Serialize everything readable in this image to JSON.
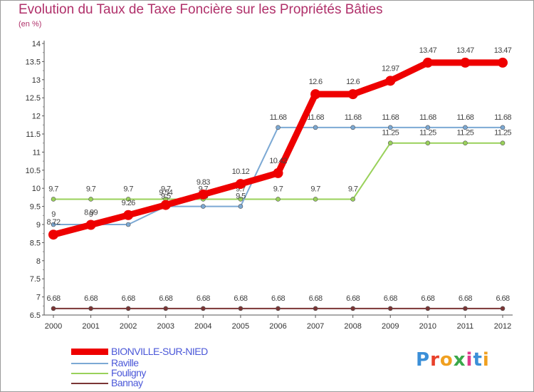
{
  "title": "Evolution du Taux de Taxe Foncière sur les Propriétés Bâties",
  "subtitle": "(en %)",
  "logo": {
    "text": "Proxiti",
    "colors": [
      "#3b8fd8",
      "#e8402a",
      "#f0a020",
      "#3aa84a",
      "#e03a8a",
      "#3b8fd8",
      "#f0a020"
    ]
  },
  "chart_data": {
    "type": "line",
    "categories": [
      "2000",
      "2001",
      "2002",
      "2003",
      "2004",
      "2005",
      "2006",
      "2007",
      "2008",
      "2009",
      "2010",
      "2011",
      "2012"
    ],
    "ylim": [
      6.5,
      14
    ],
    "yticks": [
      "6.5",
      "7",
      "7.5",
      "8",
      "8.5",
      "9",
      "9.5",
      "10",
      "10.5",
      "11",
      "11.5",
      "12",
      "12.5",
      "13",
      "13.5",
      "14"
    ],
    "grid": false,
    "legend_position": "bottom-left",
    "series": [
      {
        "name": "Bannay",
        "color": "#7b3535",
        "width": 2,
        "values": [
          6.68,
          6.68,
          6.68,
          6.68,
          6.68,
          6.68,
          6.68,
          6.68,
          6.68,
          6.68,
          6.68,
          6.68,
          6.68
        ],
        "labels": [
          "6.68",
          "6.68",
          "6.68",
          "6.68",
          "6.68",
          "6.68",
          "6.68",
          "6.68",
          "6.68",
          "6.68",
          "6.68",
          "6.68",
          "6.68"
        ]
      },
      {
        "name": "Fouligny",
        "color": "#99d15a",
        "width": 2,
        "values": [
          9.7,
          9.7,
          9.7,
          9.7,
          9.7,
          9.7,
          9.7,
          9.7,
          9.7,
          11.25,
          11.25,
          11.25,
          11.25
        ],
        "labels": [
          "9.7",
          "9.7",
          "9.7",
          "9.7",
          "9.7",
          "9.7",
          "9.7",
          "9.7",
          "9.7",
          "11.25",
          "11.25",
          "11.25",
          "11.25"
        ]
      },
      {
        "name": "Raville",
        "color": "#7ca9d4",
        "width": 2,
        "values": [
          9,
          9,
          9,
          9.5,
          9.5,
          9.5,
          11.68,
          11.68,
          11.68,
          11.68,
          11.68,
          11.68,
          11.68
        ],
        "labels": [
          "9",
          "9",
          "9",
          "9.5",
          "9.5",
          "9.5",
          "11.68",
          "11.68",
          "11.68",
          "11.68",
          "11.68",
          "11.68",
          "11.68"
        ]
      },
      {
        "name": "BIONVILLE-SUR-NIED",
        "color": "#ee0000",
        "width": 9,
        "values": [
          8.72,
          8.99,
          9.26,
          9.54,
          9.83,
          10.12,
          10.42,
          12.6,
          12.6,
          12.97,
          13.47,
          13.47,
          13.47
        ],
        "labels": [
          "8.72",
          "8.99",
          "9.26",
          "9.54",
          "9.83",
          "10.12",
          "10.42",
          "12.6",
          "12.6",
          "12.97",
          "13.47",
          "13.47",
          "13.47"
        ]
      }
    ],
    "legend_order": [
      "BIONVILLE-SUR-NIED",
      "Raville",
      "Fouligny",
      "Bannay"
    ]
  }
}
